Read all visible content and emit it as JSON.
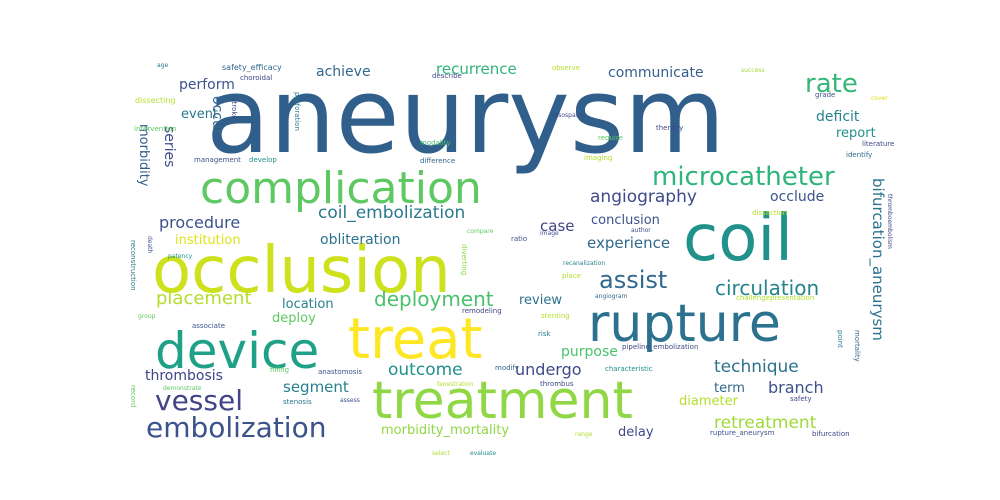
{
  "words": [
    {
      "text": "aneurysm",
      "color": "#2f5f8a"
    },
    {
      "text": "occlusion",
      "color": "#cde11d"
    },
    {
      "text": "coil",
      "color": "#21918c"
    },
    {
      "text": "complication",
      "color": "#5ec962"
    },
    {
      "text": "treatment",
      "color": "#8fd744"
    },
    {
      "text": "treat",
      "color": "#fde725"
    },
    {
      "text": "rupture",
      "color": "#2c728e"
    },
    {
      "text": "device",
      "color": "#1fa187"
    },
    {
      "text": "microcatheter",
      "color": "#2fb47c"
    },
    {
      "text": "embolization",
      "color": "#3b528b"
    },
    {
      "text": "vessel",
      "color": "#414487"
    },
    {
      "text": "rate",
      "color": "#35b779"
    },
    {
      "text": "assist",
      "color": "#31688e"
    },
    {
      "text": "deployment",
      "color": "#4ac16d"
    },
    {
      "text": "circulation",
      "color": "#26828e"
    },
    {
      "text": "angiography",
      "color": "#3e4a89"
    },
    {
      "text": "coil_embolization",
      "color": "#2a788e"
    },
    {
      "text": "placement",
      "color": "#b5de2b"
    },
    {
      "text": "procedure",
      "color": "#3b528b"
    },
    {
      "text": "experience",
      "color": "#31688e"
    },
    {
      "text": "technique",
      "color": "#2c728e"
    },
    {
      "text": "outcome",
      "color": "#21918c"
    },
    {
      "text": "undergo",
      "color": "#3e4a89"
    },
    {
      "text": "retreatment",
      "color": "#a0da39"
    },
    {
      "text": "bifurcation_aneurysm",
      "color": "#2c728e"
    },
    {
      "text": "branch",
      "color": "#3b528b"
    },
    {
      "text": "segment",
      "color": "#26828e"
    },
    {
      "text": "thrombosis",
      "color": "#414487"
    },
    {
      "text": "recurrence",
      "color": "#2fb47c"
    },
    {
      "text": "communicate",
      "color": "#355f8d"
    },
    {
      "text": "achieve",
      "color": "#31688e"
    },
    {
      "text": "perform",
      "color": "#3b528b"
    },
    {
      "text": "occur",
      "color": "#31688e"
    },
    {
      "text": "event",
      "color": "#2a788e"
    },
    {
      "text": "series",
      "color": "#3e4a89"
    },
    {
      "text": "morbidity",
      "color": "#355f8d"
    },
    {
      "text": "deficit",
      "color": "#26828e"
    },
    {
      "text": "report",
      "color": "#21918c"
    },
    {
      "text": "occlude",
      "color": "#3b528b"
    },
    {
      "text": "case",
      "color": "#414487"
    },
    {
      "text": "conclusion",
      "color": "#3b528b"
    },
    {
      "text": "obliteration",
      "color": "#2c728e"
    },
    {
      "text": "institution",
      "color": "#dde318"
    },
    {
      "text": "location",
      "color": "#26828e"
    },
    {
      "text": "review",
      "color": "#2c728e"
    },
    {
      "text": "deploy",
      "color": "#5ec962"
    },
    {
      "text": "purpose",
      "color": "#4ac16d"
    },
    {
      "text": "morbidity_mortality",
      "color": "#8fd744"
    },
    {
      "text": "term",
      "color": "#31688e"
    },
    {
      "text": "diameter",
      "color": "#b5de2b"
    },
    {
      "text": "delay",
      "color": "#3e4a89"
    },
    {
      "text": "safety_efficacy",
      "color": "#31688e"
    },
    {
      "text": "choroidal",
      "color": "#414487"
    },
    {
      "text": "age",
      "color": "#2a788e"
    },
    {
      "text": "dissecting",
      "color": "#b5de2b"
    },
    {
      "text": "intervention",
      "color": "#5ec962"
    },
    {
      "text": "stroke",
      "color": "#3e4a89"
    },
    {
      "text": "perforation",
      "color": "#2a788e"
    },
    {
      "text": "management",
      "color": "#3b528b"
    },
    {
      "text": "develop",
      "color": "#21918c"
    },
    {
      "text": "modality",
      "color": "#4ac16d"
    },
    {
      "text": "difference",
      "color": "#31688e"
    },
    {
      "text": "death",
      "color": "#3b528b"
    },
    {
      "text": "patency",
      "color": "#21918c"
    },
    {
      "text": "describe",
      "color": "#3e4a89"
    },
    {
      "text": "observe",
      "color": "#b5de2b"
    },
    {
      "text": "vasospasm",
      "color": "#414487"
    },
    {
      "text": "require",
      "color": "#5ec962"
    },
    {
      "text": "imaging",
      "color": "#b5de2b"
    },
    {
      "text": "therapy",
      "color": "#3e4a89"
    },
    {
      "text": "success",
      "color": "#a0da39"
    },
    {
      "text": "grade",
      "color": "#3b528b"
    },
    {
      "text": "cover",
      "color": "#dde318"
    },
    {
      "text": "literature",
      "color": "#3e4a89"
    },
    {
      "text": "identify",
      "color": "#31688e"
    },
    {
      "text": "dissection",
      "color": "#b5de2b"
    },
    {
      "text": "thromboembolism",
      "color": "#414487"
    },
    {
      "text": "image",
      "color": "#3b528b"
    },
    {
      "text": "author",
      "color": "#3e4a89"
    },
    {
      "text": "compare",
      "color": "#5ec962"
    },
    {
      "text": "ratio",
      "color": "#3b528b"
    },
    {
      "text": "diverting",
      "color": "#8fd744"
    },
    {
      "text": "recanalization",
      "color": "#26828e"
    },
    {
      "text": "place",
      "color": "#b5de2b"
    },
    {
      "text": "angiogram",
      "color": "#31688e"
    },
    {
      "text": "challengepresentation",
      "color": "#b5de2b"
    },
    {
      "text": "reconstruction",
      "color": "#2a788e"
    },
    {
      "text": "group",
      "color": "#5ec962"
    },
    {
      "text": "associate",
      "color": "#3b528b"
    },
    {
      "text": "remodeling",
      "color": "#414487"
    },
    {
      "text": "stenting",
      "color": "#b5de2b"
    },
    {
      "text": "risk",
      "color": "#2a788e"
    },
    {
      "text": "pipeline_embolization",
      "color": "#3e4a89"
    },
    {
      "text": "characteristic",
      "color": "#21918c"
    },
    {
      "text": "filling",
      "color": "#5ec962"
    },
    {
      "text": "anastomosis",
      "color": "#3b528b"
    },
    {
      "text": "modify",
      "color": "#31688e"
    },
    {
      "text": "thrombus",
      "color": "#3e4a89"
    },
    {
      "text": "fenestration",
      "color": "#b5de2b"
    },
    {
      "text": "demonstrate",
      "color": "#5ec962"
    },
    {
      "text": "stenosis",
      "color": "#2a788e"
    },
    {
      "text": "assess",
      "color": "#3b528b"
    },
    {
      "text": "record",
      "color": "#5ec962"
    },
    {
      "text": "range",
      "color": "#b5de2b"
    },
    {
      "text": "safety",
      "color": "#3e4a89"
    },
    {
      "text": "rupture_aneurysm",
      "color": "#3b528b"
    },
    {
      "text": "bifurcation",
      "color": "#414487"
    },
    {
      "text": "point",
      "color": "#2a788e"
    },
    {
      "text": "mortality",
      "color": "#31688e"
    },
    {
      "text": "select",
      "color": "#b5de2b"
    },
    {
      "text": "evaluate",
      "color": "#21918c"
    }
  ]
}
